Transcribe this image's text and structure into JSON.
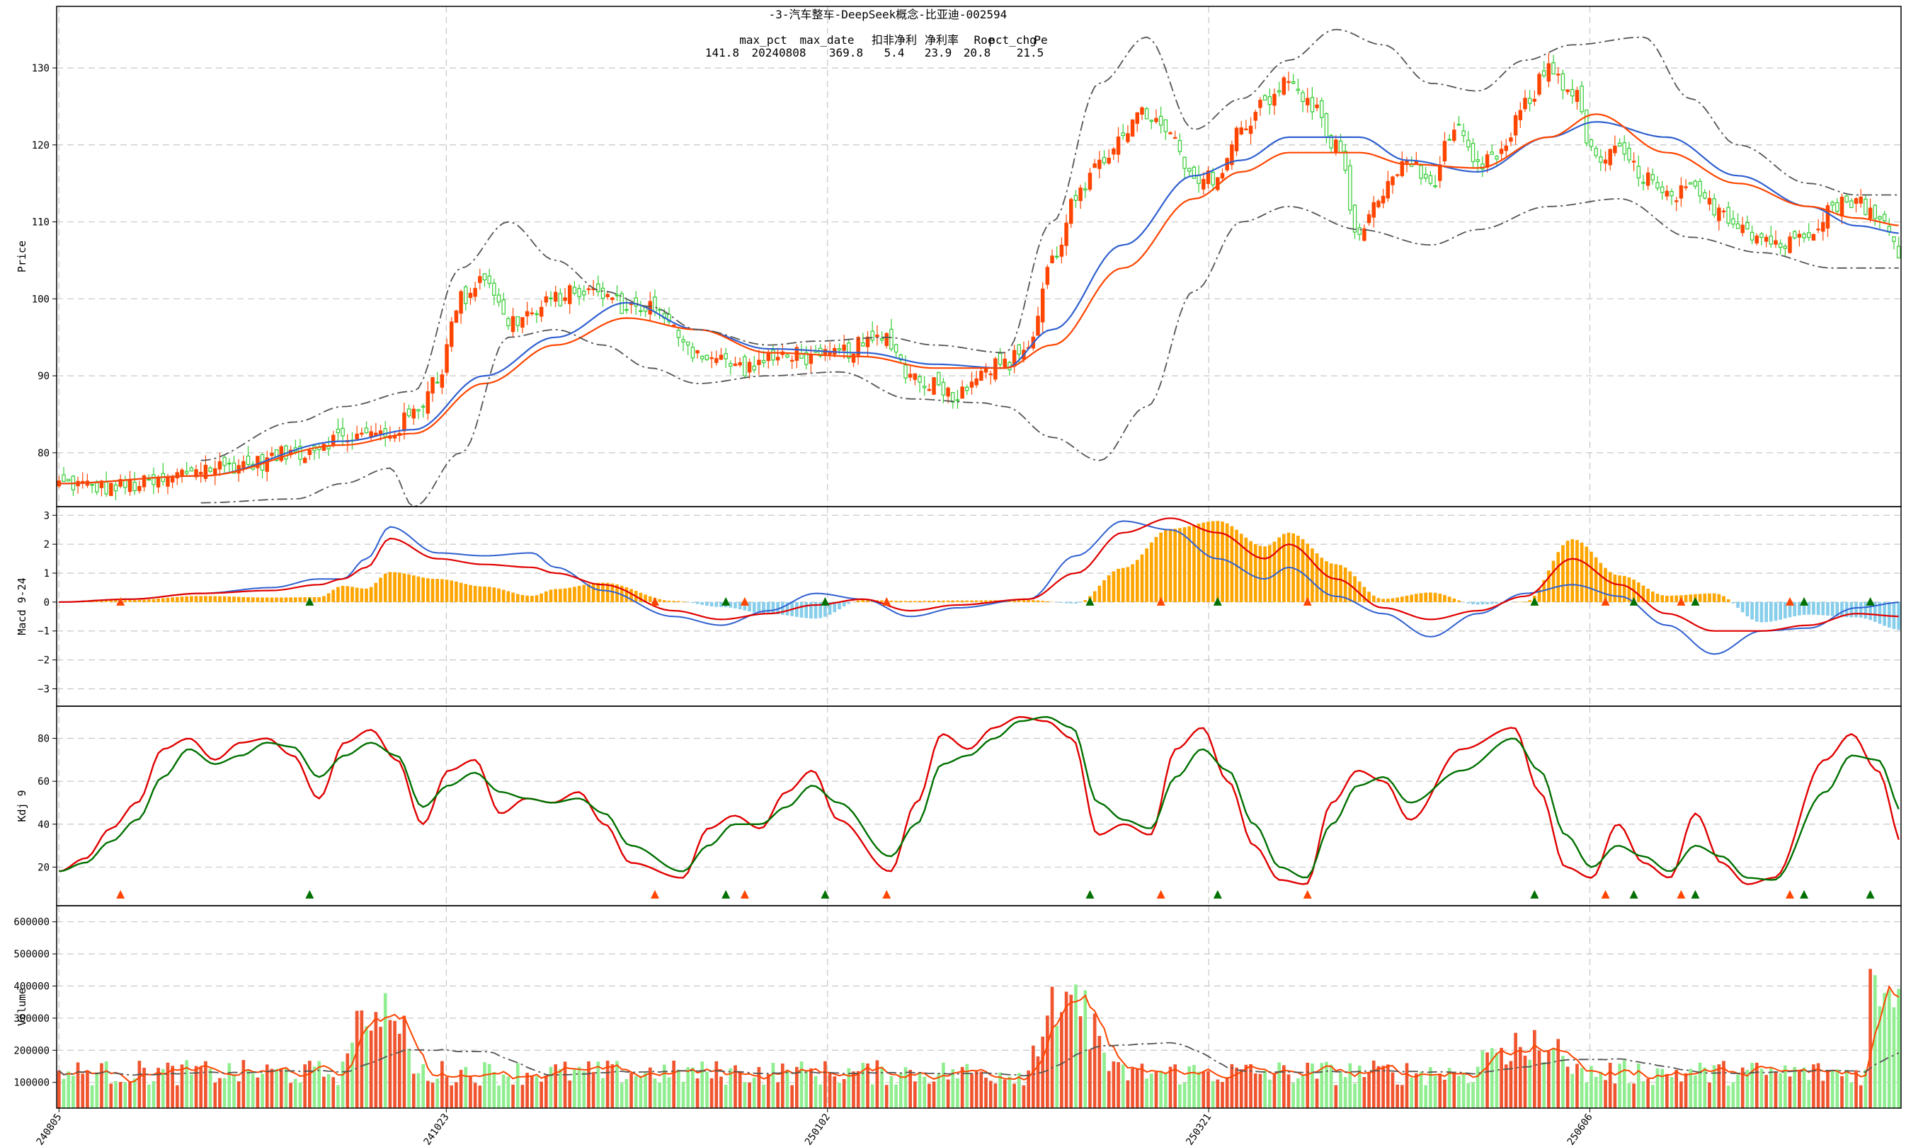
{
  "chart_data": {
    "type": "candlestick-stock-panels",
    "title": "-3-汽车整车-DeepSeek概念-比亚迪-002594",
    "info_headers": [
      "max_pct",
      "max_date",
      "扣非净利",
      "净利率",
      "Roe",
      "pct_chg",
      "Pe"
    ],
    "info_values": [
      "141.8",
      "20240808",
      "369.8",
      "5.4",
      "23.9",
      "20.8",
      "21.5"
    ],
    "x_tick_labels": [
      "240805",
      "241023",
      "250102",
      "250321",
      "250606"
    ],
    "x_tick_index": [
      0,
      63,
      125,
      187,
      249
    ],
    "n_bars": 300,
    "colors": {
      "up": "#ff4500",
      "down": "#32cd32",
      "up_vol": "#f0552f",
      "down_vol": "#90ee90",
      "ma_blue": "#3060d0",
      "ma_orange": "#ff4500",
      "band": "#555555",
      "macd_pos": "#ffa500",
      "macd_neg": "#87ceeb",
      "kdj_k": "#e00000",
      "kdj_d": "#007000",
      "sig_up": "#ff4500",
      "sig_down": "#007000"
    },
    "panels": [
      {
        "name": "price",
        "ylabel": "Price",
        "ylim": [
          73,
          138
        ],
        "yticks": [
          "80",
          "90",
          "100",
          "110",
          "120",
          "130"
        ]
      },
      {
        "name": "macd",
        "ylabel": "Macd 9-24",
        "ylim": [
          -3.6,
          3.3
        ],
        "yticks": [
          "−3",
          "−2",
          "−1",
          "0",
          "1",
          "2",
          "3"
        ]
      },
      {
        "name": "kdj",
        "ylabel": "Kdj 9",
        "ylim": [
          2,
          95
        ],
        "yticks": [
          "20",
          "40",
          "60",
          "80"
        ]
      },
      {
        "name": "volume",
        "ylabel": "Volume",
        "ylim": [
          20000,
          650000
        ],
        "yticks": [
          "100000",
          "200000",
          "300000",
          "400000",
          "500000",
          "600000"
        ]
      }
    ],
    "price_anchors": [
      [
        0,
        76
      ],
      [
        10,
        75.5
      ],
      [
        20,
        76
      ],
      [
        30,
        78
      ],
      [
        40,
        78.5
      ],
      [
        50,
        80
      ],
      [
        60,
        82
      ],
      [
        70,
        82.5
      ],
      [
        75,
        85
      ],
      [
        80,
        90
      ],
      [
        85,
        100
      ],
      [
        90,
        103
      ],
      [
        95,
        97
      ],
      [
        100,
        98
      ],
      [
        105,
        100
      ],
      [
        110,
        101
      ],
      [
        115,
        100.5
      ],
      [
        120,
        99
      ],
      [
        125,
        99
      ],
      [
        130,
        96
      ],
      [
        135,
        93
      ],
      [
        140,
        92
      ],
      [
        145,
        91
      ],
      [
        150,
        92
      ],
      [
        155,
        93
      ],
      [
        160,
        92
      ],
      [
        165,
        93
      ],
      [
        170,
        94
      ],
      [
        175,
        95
      ],
      [
        180,
        90
      ],
      [
        185,
        89
      ],
      [
        190,
        87.5
      ],
      [
        195,
        91
      ],
      [
        200,
        91.5
      ],
      [
        205,
        94
      ],
      [
        210,
        105
      ],
      [
        215,
        113
      ],
      [
        220,
        117
      ],
      [
        225,
        122
      ],
      [
        230,
        124
      ],
      [
        235,
        121
      ],
      [
        240,
        115
      ],
      [
        245,
        116
      ],
      [
        250,
        122
      ],
      [
        255,
        126
      ],
      [
        260,
        128
      ],
      [
        265,
        125
      ],
      [
        270,
        120
      ],
      [
        275,
        108
      ],
      [
        280,
        114
      ],
      [
        285,
        118
      ],
      [
        290,
        115
      ],
      [
        295,
        122
      ],
      [
        300,
        117
      ],
      [
        305,
        119
      ],
      [
        310,
        125
      ],
      [
        315,
        130
      ],
      [
        320,
        127
      ],
      [
        325,
        118
      ],
      [
        330,
        119
      ],
      [
        335,
        116
      ],
      [
        340,
        113
      ],
      [
        345,
        114
      ],
      [
        350,
        112
      ],
      [
        355,
        110
      ],
      [
        360,
        108
      ],
      [
        365,
        107
      ],
      [
        370,
        109
      ],
      [
        375,
        112
      ],
      [
        380,
        113
      ],
      [
        385,
        110
      ],
      [
        390,
        106
      ]
    ],
    "ma_blue_anchors": [
      [
        0,
        76
      ],
      [
        30,
        77
      ],
      [
        60,
        81.5
      ],
      [
        75,
        83
      ],
      [
        90,
        90
      ],
      [
        105,
        95
      ],
      [
        120,
        99.5
      ],
      [
        135,
        96
      ],
      [
        150,
        93.5
      ],
      [
        170,
        93
      ],
      [
        185,
        91.5
      ],
      [
        200,
        91
      ],
      [
        210,
        96
      ],
      [
        225,
        107
      ],
      [
        240,
        116
      ],
      [
        250,
        118
      ],
      [
        260,
        121
      ],
      [
        275,
        121
      ],
      [
        285,
        118
      ],
      [
        300,
        116.5
      ],
      [
        315,
        121
      ],
      [
        325,
        123
      ],
      [
        340,
        121
      ],
      [
        355,
        116
      ],
      [
        370,
        112
      ],
      [
        380,
        109.5
      ],
      [
        390,
        108.5
      ]
    ],
    "ma_orange_anchors": [
      [
        0,
        76
      ],
      [
        30,
        77
      ],
      [
        60,
        81
      ],
      [
        75,
        82.5
      ],
      [
        90,
        89
      ],
      [
        105,
        94
      ],
      [
        120,
        97.5
      ],
      [
        135,
        96
      ],
      [
        150,
        93
      ],
      [
        170,
        92.5
      ],
      [
        185,
        91
      ],
      [
        200,
        91
      ],
      [
        210,
        94
      ],
      [
        225,
        104
      ],
      [
        240,
        113
      ],
      [
        250,
        116.5
      ],
      [
        260,
        119
      ],
      [
        275,
        119
      ],
      [
        285,
        117.5
      ],
      [
        300,
        117
      ],
      [
        315,
        121
      ],
      [
        325,
        124
      ],
      [
        340,
        119
      ],
      [
        355,
        115
      ],
      [
        370,
        112
      ],
      [
        380,
        110.5
      ],
      [
        390,
        109.5
      ]
    ],
    "band_upper_anchors": [
      [
        30,
        79
      ],
      [
        50,
        84
      ],
      [
        60,
        86
      ],
      [
        75,
        88
      ],
      [
        85,
        104
      ],
      [
        95,
        110
      ],
      [
        105,
        105
      ],
      [
        115,
        101
      ],
      [
        125,
        99
      ],
      [
        135,
        96
      ],
      [
        150,
        94
      ],
      [
        160,
        94.5
      ],
      [
        175,
        95
      ],
      [
        185,
        94
      ],
      [
        200,
        93
      ],
      [
        210,
        110
      ],
      [
        220,
        128
      ],
      [
        230,
        134
      ],
      [
        240,
        122
      ],
      [
        250,
        126
      ],
      [
        260,
        131
      ],
      [
        270,
        135
      ],
      [
        280,
        133
      ],
      [
        290,
        128
      ],
      [
        300,
        127
      ],
      [
        310,
        131
      ],
      [
        320,
        133
      ],
      [
        335,
        134
      ],
      [
        345,
        126
      ],
      [
        355,
        120
      ],
      [
        370,
        115
      ],
      [
        380,
        113.5
      ],
      [
        390,
        113.5
      ]
    ],
    "band_lower_anchors": [
      [
        30,
        73.5
      ],
      [
        50,
        74
      ],
      [
        60,
        76
      ],
      [
        70,
        78
      ],
      [
        75,
        73
      ],
      [
        85,
        80
      ],
      [
        95,
        95
      ],
      [
        105,
        96
      ],
      [
        115,
        94
      ],
      [
        125,
        91
      ],
      [
        135,
        89
      ],
      [
        150,
        90
      ],
      [
        165,
        90.5
      ],
      [
        180,
        87
      ],
      [
        195,
        86.5
      ],
      [
        200,
        86
      ],
      [
        210,
        82
      ],
      [
        220,
        79
      ],
      [
        230,
        86
      ],
      [
        240,
        101
      ],
      [
        250,
        110
      ],
      [
        260,
        112
      ],
      [
        275,
        109
      ],
      [
        290,
        107
      ],
      [
        300,
        109
      ],
      [
        315,
        112
      ],
      [
        330,
        113
      ],
      [
        345,
        108
      ],
      [
        360,
        106
      ],
      [
        375,
        104
      ],
      [
        390,
        104
      ]
    ],
    "dif_anchors": [
      [
        0,
        0
      ],
      [
        15,
        0.1
      ],
      [
        30,
        0.3
      ],
      [
        45,
        0.5
      ],
      [
        55,
        0.8
      ],
      [
        60,
        0.8
      ],
      [
        65,
        1.5
      ],
      [
        70,
        2.6
      ],
      [
        80,
        1.7
      ],
      [
        90,
        1.6
      ],
      [
        100,
        1.7
      ],
      [
        105,
        1.2
      ],
      [
        115,
        0.4
      ],
      [
        130,
        -0.5
      ],
      [
        140,
        -0.8
      ],
      [
        150,
        -0.3
      ],
      [
        160,
        0.3
      ],
      [
        170,
        0.1
      ],
      [
        180,
        -0.5
      ],
      [
        190,
        -0.2
      ],
      [
        205,
        0.1
      ],
      [
        215,
        1.6
      ],
      [
        225,
        2.8
      ],
      [
        235,
        2.5
      ],
      [
        245,
        1.5
      ],
      [
        255,
        0.8
      ],
      [
        260,
        1.2
      ],
      [
        270,
        0.2
      ],
      [
        280,
        -0.4
      ],
      [
        290,
        -1.2
      ],
      [
        300,
        -0.4
      ],
      [
        310,
        0.3
      ],
      [
        320,
        0.6
      ],
      [
        330,
        0.2
      ],
      [
        340,
        -0.8
      ],
      [
        350,
        -1.8
      ],
      [
        360,
        -1.0
      ],
      [
        370,
        -0.9
      ],
      [
        380,
        -0.2
      ],
      [
        390,
        0
      ]
    ],
    "dea_anchors": [
      [
        0,
        0
      ],
      [
        15,
        0.1
      ],
      [
        30,
        0.3
      ],
      [
        45,
        0.4
      ],
      [
        55,
        0.6
      ],
      [
        60,
        0.8
      ],
      [
        65,
        1.2
      ],
      [
        70,
        2.2
      ],
      [
        80,
        1.5
      ],
      [
        90,
        1.3
      ],
      [
        100,
        1.2
      ],
      [
        105,
        1.0
      ],
      [
        115,
        0.6
      ],
      [
        130,
        -0.3
      ],
      [
        140,
        -0.6
      ],
      [
        150,
        -0.4
      ],
      [
        160,
        -0.1
      ],
      [
        170,
        0.1
      ],
      [
        180,
        -0.3
      ],
      [
        190,
        -0.1
      ],
      [
        205,
        0.1
      ],
      [
        215,
        1.0
      ],
      [
        225,
        2.4
      ],
      [
        235,
        2.9
      ],
      [
        245,
        2.4
      ],
      [
        255,
        1.5
      ],
      [
        260,
        2.0
      ],
      [
        270,
        0.8
      ],
      [
        280,
        -0.2
      ],
      [
        290,
        -0.6
      ],
      [
        300,
        -0.3
      ],
      [
        310,
        0.2
      ],
      [
        320,
        1.5
      ],
      [
        330,
        0.6
      ],
      [
        340,
        -0.4
      ],
      [
        350,
        -1.0
      ],
      [
        360,
        -1.0
      ],
      [
        370,
        -0.8
      ],
      [
        380,
        -0.4
      ],
      [
        390,
        -0.5
      ]
    ],
    "k_anchors": [
      [
        0,
        18
      ],
      [
        5,
        24
      ],
      [
        10,
        38
      ],
      [
        15,
        50
      ],
      [
        20,
        75
      ],
      [
        25,
        80
      ],
      [
        30,
        70
      ],
      [
        35,
        78
      ],
      [
        40,
        80
      ],
      [
        45,
        72
      ],
      [
        50,
        52
      ],
      [
        55,
        78
      ],
      [
        60,
        84
      ],
      [
        65,
        70
      ],
      [
        70,
        40
      ],
      [
        75,
        65
      ],
      [
        80,
        70
      ],
      [
        85,
        45
      ],
      [
        90,
        52
      ],
      [
        95,
        50
      ],
      [
        100,
        55
      ],
      [
        105,
        40
      ],
      [
        110,
        22
      ],
      [
        120,
        15
      ],
      [
        125,
        38
      ],
      [
        130,
        44
      ],
      [
        135,
        38
      ],
      [
        140,
        55
      ],
      [
        145,
        65
      ],
      [
        150,
        42
      ],
      [
        160,
        18
      ],
      [
        165,
        50
      ],
      [
        170,
        82
      ],
      [
        175,
        75
      ],
      [
        180,
        85
      ],
      [
        185,
        90
      ],
      [
        190,
        88
      ],
      [
        195,
        80
      ],
      [
        200,
        35
      ],
      [
        205,
        40
      ],
      [
        210,
        35
      ],
      [
        215,
        75
      ],
      [
        220,
        85
      ],
      [
        225,
        60
      ],
      [
        230,
        30
      ],
      [
        235,
        14
      ],
      [
        240,
        12
      ],
      [
        245,
        50
      ],
      [
        250,
        65
      ],
      [
        255,
        60
      ],
      [
        260,
        42
      ],
      [
        270,
        75
      ],
      [
        280,
        85
      ],
      [
        285,
        55
      ],
      [
        290,
        20
      ],
      [
        295,
        15
      ],
      [
        300,
        40
      ],
      [
        305,
        22
      ],
      [
        310,
        15
      ],
      [
        315,
        45
      ],
      [
        320,
        22
      ],
      [
        325,
        12
      ],
      [
        330,
        15
      ],
      [
        340,
        70
      ],
      [
        345,
        82
      ],
      [
        350,
        65
      ],
      [
        355,
        30
      ]
    ],
    "d_anchors": [
      [
        0,
        18
      ],
      [
        5,
        22
      ],
      [
        10,
        32
      ],
      [
        15,
        42
      ],
      [
        20,
        62
      ],
      [
        25,
        75
      ],
      [
        30,
        68
      ],
      [
        35,
        72
      ],
      [
        40,
        78
      ],
      [
        45,
        76
      ],
      [
        50,
        62
      ],
      [
        55,
        72
      ],
      [
        60,
        78
      ],
      [
        65,
        72
      ],
      [
        70,
        48
      ],
      [
        75,
        58
      ],
      [
        80,
        64
      ],
      [
        85,
        55
      ],
      [
        90,
        52
      ],
      [
        95,
        50
      ],
      [
        100,
        52
      ],
      [
        105,
        45
      ],
      [
        110,
        30
      ],
      [
        120,
        18
      ],
      [
        125,
        30
      ],
      [
        130,
        40
      ],
      [
        135,
        40
      ],
      [
        140,
        48
      ],
      [
        145,
        58
      ],
      [
        150,
        50
      ],
      [
        160,
        25
      ],
      [
        165,
        40
      ],
      [
        170,
        68
      ],
      [
        175,
        72
      ],
      [
        180,
        80
      ],
      [
        185,
        88
      ],
      [
        190,
        90
      ],
      [
        195,
        85
      ],
      [
        200,
        50
      ],
      [
        205,
        42
      ],
      [
        210,
        38
      ],
      [
        215,
        62
      ],
      [
        220,
        75
      ],
      [
        225,
        65
      ],
      [
        230,
        40
      ],
      [
        235,
        20
      ],
      [
        240,
        15
      ],
      [
        245,
        40
      ],
      [
        250,
        58
      ],
      [
        255,
        62
      ],
      [
        260,
        50
      ],
      [
        270,
        65
      ],
      [
        280,
        80
      ],
      [
        285,
        65
      ],
      [
        290,
        35
      ],
      [
        295,
        20
      ],
      [
        300,
        30
      ],
      [
        305,
        25
      ],
      [
        310,
        18
      ],
      [
        315,
        30
      ],
      [
        320,
        25
      ],
      [
        325,
        15
      ],
      [
        330,
        14
      ],
      [
        340,
        55
      ],
      [
        345,
        72
      ],
      [
        350,
        70
      ],
      [
        355,
        45
      ]
    ]
  }
}
